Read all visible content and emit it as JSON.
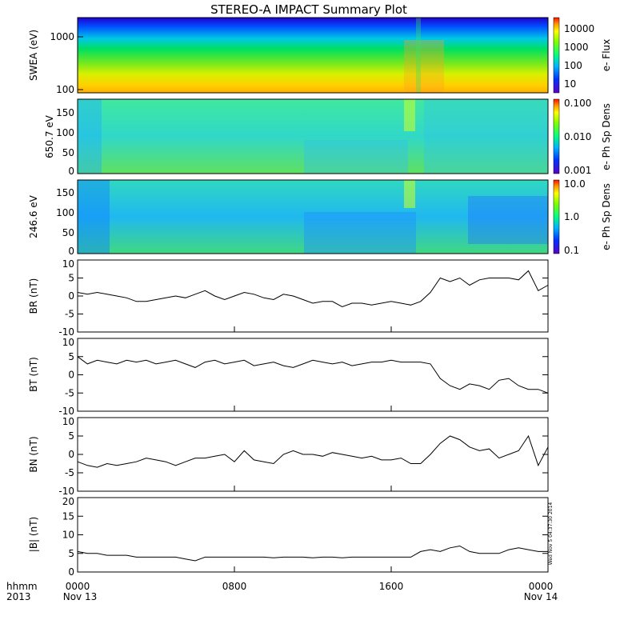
{
  "title": "STEREO-A IMPACT Summary Plot",
  "x_axis": {
    "row1_label": "hhmm",
    "row2_label": "2013",
    "ticks": [
      "0000",
      "0800",
      "1600",
      "0000"
    ],
    "date_labels": [
      "Nov 13",
      "Nov 14"
    ]
  },
  "timestamp": "Wed Nov 5 04:37:30 2014",
  "spectrogram_panels": [
    {
      "ylabel": "SWEA (eV)",
      "yticks": [
        "1000",
        "100"
      ],
      "cb_label": "e- Flux",
      "cb_ticks": [
        "10000",
        "1000",
        "100",
        "10"
      ]
    },
    {
      "ylabel": "650.7 eV",
      "yticks": [
        "150",
        "100",
        "50",
        "0"
      ],
      "cb_label": "e- Ph Sp Dens",
      "cb_ticks": [
        "0.100",
        "0.010",
        "0.001"
      ]
    },
    {
      "ylabel": "246.6 eV",
      "yticks": [
        "150",
        "100",
        "50",
        "0"
      ],
      "cb_label": "e- Ph Sp Dens",
      "cb_ticks": [
        "10.0",
        "1.0",
        "0.1"
      ]
    }
  ],
  "line_panels": [
    {
      "ylabel": "BR (nT)",
      "yticks": [
        "10",
        "5",
        "0",
        "-5",
        "-10"
      ]
    },
    {
      "ylabel": "BT (nT)",
      "yticks": [
        "10",
        "5",
        "0",
        "-5",
        "-10"
      ]
    },
    {
      "ylabel": "BN (nT)",
      "yticks": [
        "10",
        "5",
        "0",
        "-5",
        "-10"
      ]
    },
    {
      "ylabel": "|B| (nT)",
      "yticks": [
        "20",
        "15",
        "10",
        "5",
        "0"
      ]
    }
  ],
  "chart_data": [
    {
      "type": "heatmap",
      "panel": "SWEA",
      "ylabel": "SWEA (eV)",
      "yscale": "log",
      "ylim": [
        90,
        2000
      ],
      "x_range_hours": [
        0,
        24
      ],
      "color_label": "e- Flux",
      "color_scale": "log",
      "color_range": [
        5,
        30000
      ]
    },
    {
      "type": "heatmap",
      "panel": "pitch-angle 650.7 eV",
      "ylabel": "650.7 eV",
      "ylim": [
        0,
        180
      ],
      "x_range_hours": [
        0,
        24
      ],
      "color_label": "e- Ph Sp Dens",
      "color_scale": "log",
      "color_range": [
        0.001,
        0.1
      ]
    },
    {
      "type": "heatmap",
      "panel": "pitch-angle 246.6 eV",
      "ylabel": "246.6 eV",
      "ylim": [
        0,
        180
      ],
      "x_range_hours": [
        0,
        24
      ],
      "color_label": "e- Ph Sp Dens",
      "color_scale": "log",
      "color_range": [
        0.1,
        10
      ]
    },
    {
      "type": "line",
      "ylabel": "BR (nT)",
      "ylim": [
        -10,
        10
      ],
      "x": [
        0,
        0.5,
        1,
        1.5,
        2,
        2.5,
        3,
        3.5,
        4,
        4.5,
        5,
        5.5,
        6,
        6.5,
        7,
        7.5,
        8,
        8.5,
        9,
        9.5,
        10,
        10.5,
        11,
        11.5,
        12,
        12.5,
        13,
        13.5,
        14,
        14.5,
        15,
        15.5,
        16,
        16.5,
        17,
        17.5,
        18,
        18.5,
        19,
        19.5,
        20,
        20.5,
        21,
        21.5,
        22,
        22.5,
        23,
        23.5,
        24
      ],
      "values": [
        1,
        0.5,
        1,
        0.5,
        0,
        -0.5,
        -1.5,
        -1.5,
        -1,
        -0.5,
        0,
        -0.5,
        0.5,
        1.5,
        0,
        -1,
        0,
        1,
        0.5,
        -0.5,
        -1,
        0.5,
        0,
        -1,
        -2,
        -1.5,
        -1.5,
        -3,
        -2,
        -2,
        -2.5,
        -2,
        -1.5,
        -2,
        -2.5,
        -1.5,
        1,
        5,
        4,
        5,
        3,
        4.5,
        5,
        5,
        5,
        4.5,
        7,
        1.5,
        3
      ]
    },
    {
      "type": "line",
      "ylabel": "BT (nT)",
      "ylim": [
        -10,
        10
      ],
      "x": [
        0,
        0.5,
        1,
        1.5,
        2,
        2.5,
        3,
        3.5,
        4,
        4.5,
        5,
        5.5,
        6,
        6.5,
        7,
        7.5,
        8,
        8.5,
        9,
        9.5,
        10,
        10.5,
        11,
        11.5,
        12,
        12.5,
        13,
        13.5,
        14,
        14.5,
        15,
        15.5,
        16,
        16.5,
        17,
        17.5,
        18,
        18.5,
        19,
        19.5,
        20,
        20.5,
        21,
        21.5,
        22,
        22.5,
        23,
        23.5,
        24
      ],
      "values": [
        5,
        3,
        4,
        3.5,
        3,
        4,
        3.5,
        4,
        3,
        3.5,
        4,
        3,
        2,
        3.5,
        4,
        3,
        3.5,
        4,
        2.5,
        3,
        3.5,
        2.5,
        2,
        3,
        4,
        3.5,
        3,
        3.5,
        2.5,
        3,
        3.5,
        3.5,
        4,
        3.5,
        3.5,
        3.5,
        3,
        -1,
        -3,
        -4,
        -2.5,
        -3,
        -4,
        -1.5,
        -1,
        -3,
        -4,
        -4,
        -5
      ]
    },
    {
      "type": "line",
      "ylabel": "BN (nT)",
      "ylim": [
        -10,
        10
      ],
      "x": [
        0,
        0.5,
        1,
        1.5,
        2,
        2.5,
        3,
        3.5,
        4,
        4.5,
        5,
        5.5,
        6,
        6.5,
        7,
        7.5,
        8,
        8.5,
        9,
        9.5,
        10,
        10.5,
        11,
        11.5,
        12,
        12.5,
        13,
        13.5,
        14,
        14.5,
        15,
        15.5,
        16,
        16.5,
        17,
        17.5,
        18,
        18.5,
        19,
        19.5,
        20,
        20.5,
        21,
        21.5,
        22,
        22.5,
        23,
        23.5,
        24
      ],
      "values": [
        -2,
        -3,
        -3.5,
        -2.5,
        -3,
        -2.5,
        -2,
        -1,
        -1.5,
        -2,
        -3,
        -2,
        -1,
        -1,
        -0.5,
        0,
        -2,
        1,
        -1.5,
        -2,
        -2.5,
        0,
        1,
        0,
        0,
        -0.5,
        0.5,
        0,
        -0.5,
        -1,
        -0.5,
        -1.5,
        -1.5,
        -1,
        -2.5,
        -2.5,
        0,
        3,
        5,
        4,
        2,
        1,
        1.5,
        -1,
        0,
        1,
        5,
        -3,
        2
      ]
    },
    {
      "type": "line",
      "ylabel": "|B| (nT)",
      "ylim": [
        0,
        20
      ],
      "x": [
        0,
        0.5,
        1,
        1.5,
        2,
        2.5,
        3,
        3.5,
        4,
        4.5,
        5,
        5.5,
        6,
        6.5,
        7,
        7.5,
        8,
        8.5,
        9,
        9.5,
        10,
        10.5,
        11,
        11.5,
        12,
        12.5,
        13,
        13.5,
        14,
        14.5,
        15,
        15.5,
        16,
        16.5,
        17,
        17.5,
        18,
        18.5,
        19,
        19.5,
        20,
        20.5,
        21,
        21.5,
        22,
        22.5,
        23,
        23.5,
        24
      ],
      "values": [
        5.5,
        5,
        5,
        4.5,
        4.5,
        4.5,
        4,
        4,
        4,
        4,
        4,
        3.5,
        3,
        4,
        4,
        4,
        4,
        4,
        4,
        4,
        3.8,
        4,
        4,
        4,
        3.8,
        4,
        4,
        3.8,
        4,
        4,
        4,
        4,
        4,
        4,
        4,
        5.5,
        6,
        5.5,
        6.5,
        7,
        5.5,
        5,
        5,
        5,
        6,
        6.5,
        6,
        5.5,
        5.5
      ]
    }
  ]
}
